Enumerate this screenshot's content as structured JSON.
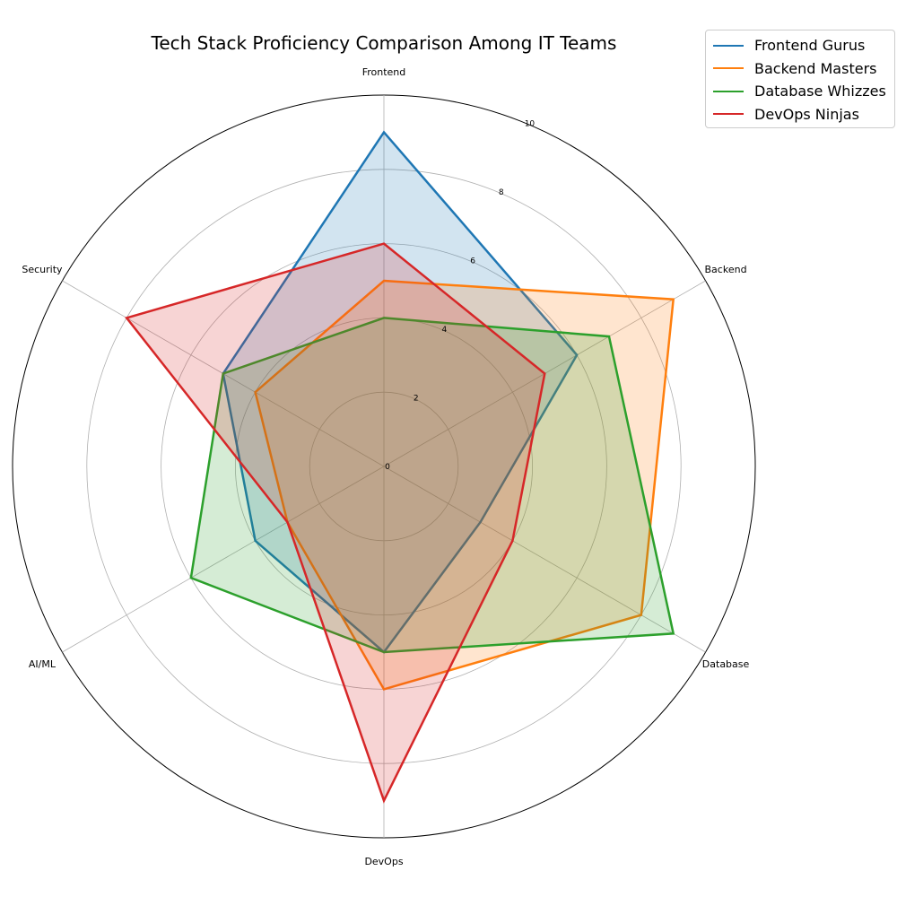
{
  "chart_data": {
    "type": "radar",
    "title": "Tech Stack Proficiency Comparison Among IT Teams",
    "categories": [
      "Frontend",
      "Backend",
      "Database",
      "DevOps",
      "AI/ML",
      "Security"
    ],
    "rlim": [
      0,
      10
    ],
    "rticks": [
      "0",
      "2",
      "4",
      "6",
      "8",
      "10"
    ],
    "grid": true,
    "legend_position": "top-right",
    "series": [
      {
        "name": "Frontend Gurus",
        "color": "#1f77b4",
        "values": [
          9,
          6,
          3,
          5,
          4,
          5
        ]
      },
      {
        "name": "Backend Masters",
        "color": "#ff7f0e",
        "values": [
          5,
          9,
          8,
          6,
          3,
          4
        ]
      },
      {
        "name": "Database Whizzes",
        "color": "#2ca02c",
        "values": [
          4,
          7,
          9,
          5,
          6,
          5
        ]
      },
      {
        "name": "DevOps Ninjas",
        "color": "#d62728",
        "values": [
          6,
          5,
          4,
          9,
          3,
          8
        ]
      }
    ]
  }
}
